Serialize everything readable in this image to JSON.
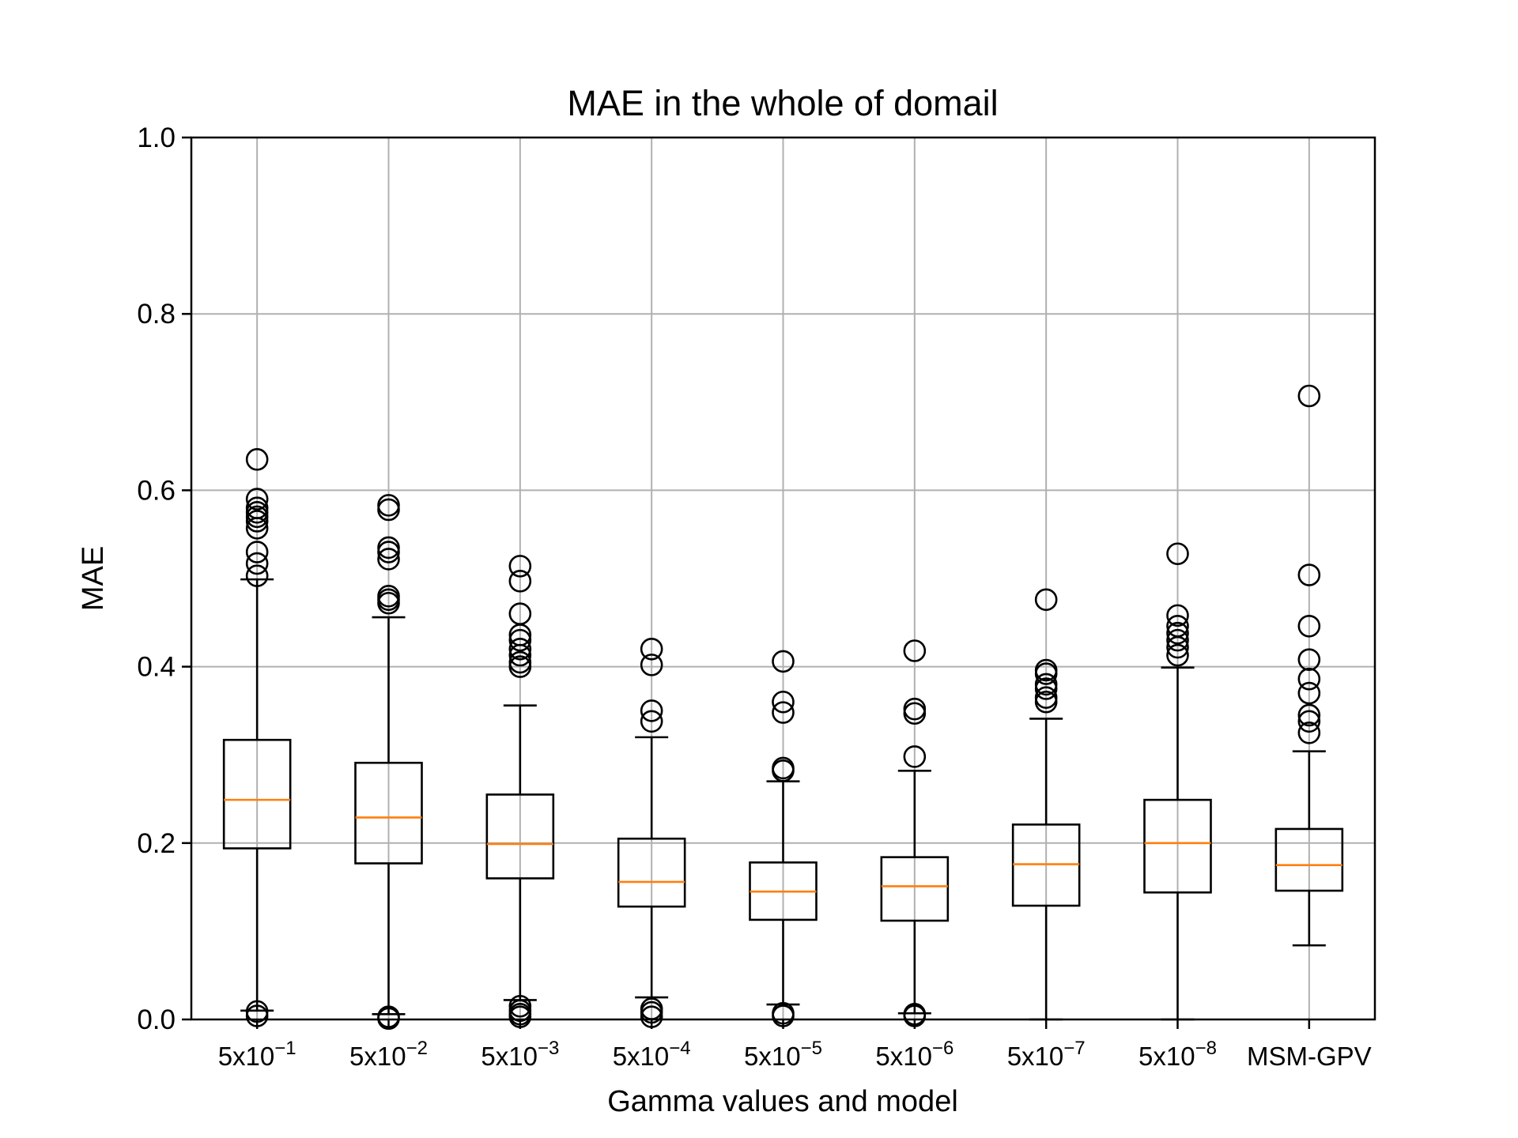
{
  "chart_data": {
    "type": "boxplot",
    "title": "MAE in the whole of domail",
    "xlabel": "Gamma values and model",
    "ylabel": "MAE",
    "ylim": [
      0.0,
      1.0
    ],
    "yticks": [
      "0.0",
      "0.2",
      "0.4",
      "0.6",
      "0.8",
      "1.0"
    ],
    "grid": true,
    "colors": {
      "median": "#ff7f0e",
      "box": "#000000",
      "grid": "#b0b0b0"
    },
    "boxes": [
      {
        "label": "5x10",
        "exp": "−1",
        "whislo": 0.01,
        "q1": 0.194,
        "median": 0.249,
        "q3": 0.317,
        "whishi": 0.499,
        "fliers": [
          0.635,
          0.59,
          0.58,
          0.575,
          0.57,
          0.565,
          0.557,
          0.53,
          0.517,
          0.503,
          0.009,
          0.004
        ]
      },
      {
        "label": "5x10",
        "exp": "−2",
        "whislo": 0.006,
        "q1": 0.177,
        "median": 0.229,
        "q3": 0.291,
        "whishi": 0.456,
        "fliers": [
          0.583,
          0.578,
          0.535,
          0.53,
          0.522,
          0.48,
          0.476,
          0.472,
          0.003,
          0.001
        ]
      },
      {
        "label": "5x10",
        "exp": "−3",
        "whislo": 0.022,
        "q1": 0.16,
        "median": 0.199,
        "q3": 0.255,
        "whishi": 0.356,
        "fliers": [
          0.514,
          0.497,
          0.46,
          0.436,
          0.43,
          0.42,
          0.413,
          0.405,
          0.4,
          0.015,
          0.01,
          0.006,
          0.003
        ]
      },
      {
        "label": "5x10",
        "exp": "−4",
        "whislo": 0.025,
        "q1": 0.128,
        "median": 0.156,
        "q3": 0.205,
        "whishi": 0.32,
        "fliers": [
          0.42,
          0.402,
          0.35,
          0.338,
          0.012,
          0.008,
          0.003
        ]
      },
      {
        "label": "5x10",
        "exp": "−5",
        "whislo": 0.017,
        "q1": 0.113,
        "median": 0.145,
        "q3": 0.178,
        "whishi": 0.27,
        "fliers": [
          0.406,
          0.36,
          0.348,
          0.285,
          0.282,
          0.007,
          0.004
        ]
      },
      {
        "label": "5x10",
        "exp": "−6",
        "whislo": 0.007,
        "q1": 0.112,
        "median": 0.151,
        "q3": 0.184,
        "whishi": 0.282,
        "fliers": [
          0.418,
          0.352,
          0.347,
          0.298,
          0.006,
          0.004
        ]
      },
      {
        "label": "5x10",
        "exp": "−7",
        "whislo": 0.0,
        "q1": 0.129,
        "median": 0.176,
        "q3": 0.221,
        "whishi": 0.341,
        "fliers": [
          0.476,
          0.396,
          0.392,
          0.38,
          0.375,
          0.365,
          0.36
        ]
      },
      {
        "label": "5x10",
        "exp": "−8",
        "whislo": 0.0,
        "q1": 0.144,
        "median": 0.2,
        "q3": 0.249,
        "whishi": 0.399,
        "fliers": [
          0.528,
          0.458,
          0.446,
          0.438,
          0.43,
          0.422,
          0.413
        ]
      },
      {
        "label": "MSM-GPV",
        "exp": "",
        "whislo": 0.084,
        "q1": 0.146,
        "median": 0.175,
        "q3": 0.216,
        "whishi": 0.304,
        "fliers": [
          0.707,
          0.504,
          0.446,
          0.408,
          0.386,
          0.37,
          0.345,
          0.338,
          0.325
        ]
      }
    ]
  }
}
